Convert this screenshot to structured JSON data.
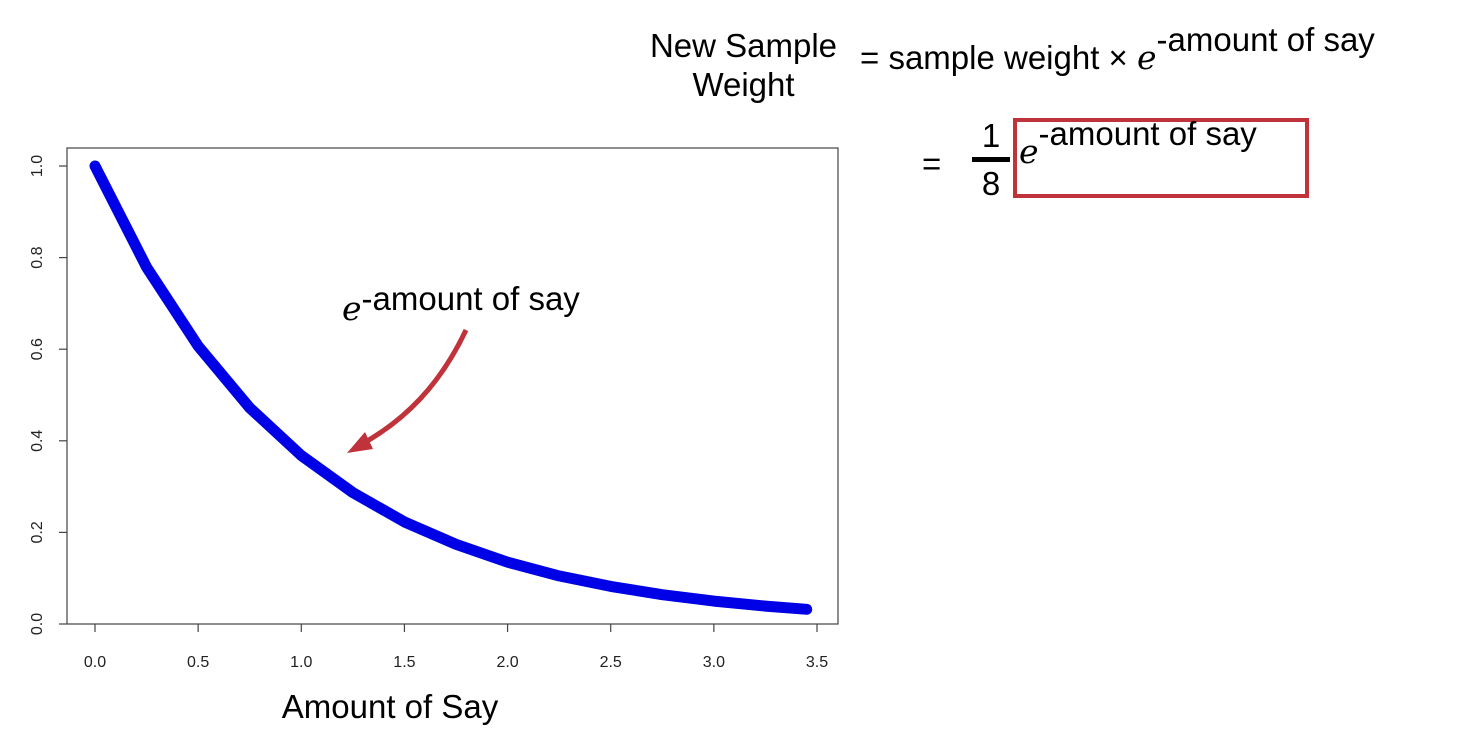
{
  "equation": {
    "lhs": "New Sample Weight",
    "lhs_line1": "New Sample",
    "lhs_line2": "Weight",
    "rhs_prefix": "= sample weight ×",
    "e": "e",
    "exponent": "-amount of say",
    "line2_equals": "=",
    "fraction_numerator": "1",
    "fraction_denominator": "8",
    "box_color": "#c0333a"
  },
  "chart_data": {
    "type": "line",
    "title": "",
    "xlabel": "Amount of Say",
    "ylabel": "",
    "xlim": [
      0,
      3.5
    ],
    "ylim": [
      0,
      1
    ],
    "xticks": [
      "0.0",
      "0.5",
      "1.0",
      "1.5",
      "2.0",
      "2.5",
      "3.0",
      "3.5"
    ],
    "yticks": [
      "0.0",
      "0.2",
      "0.4",
      "0.6",
      "0.8",
      "1.0"
    ],
    "series": [
      {
        "color": "#0000e6",
        "x": [
          0,
          0.25,
          0.5,
          0.75,
          1.0,
          1.25,
          1.5,
          1.75,
          2.0,
          2.25,
          2.5,
          2.75,
          3.0,
          3.25,
          3.45
        ],
        "y": [
          1.0,
          0.779,
          0.607,
          0.472,
          0.368,
          0.287,
          0.223,
          0.174,
          0.135,
          0.105,
          0.082,
          0.064,
          0.05,
          0.039,
          0.032
        ]
      }
    ],
    "annotation": {
      "e": "e",
      "exponent": "-amount of say",
      "arrow_color": "#c0333a",
      "points_to": [
        1.2,
        0.36
      ]
    },
    "grid": false,
    "legend": "none"
  }
}
